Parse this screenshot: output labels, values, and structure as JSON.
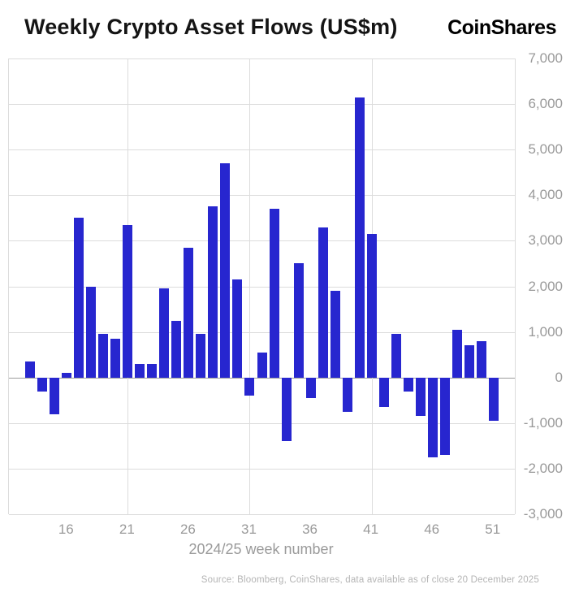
{
  "header": {
    "title": "Weekly Crypto Asset Flows (US$m)",
    "logo": "CoinShares"
  },
  "chart_data": {
    "type": "bar",
    "title": "Weekly Crypto Asset Flows (US$m)",
    "xlabel": "2024/25 week number",
    "ylabel": "",
    "weeks": [
      13,
      14,
      15,
      16,
      17,
      18,
      19,
      20,
      21,
      22,
      23,
      24,
      25,
      26,
      27,
      28,
      29,
      30,
      31,
      32,
      33,
      34,
      35,
      36,
      37,
      38,
      39,
      40,
      41,
      42,
      43,
      44,
      45,
      46,
      47,
      48,
      49,
      50,
      51
    ],
    "values": [
      350,
      -300,
      -800,
      100,
      3500,
      2000,
      950,
      850,
      3350,
      300,
      300,
      1950,
      1250,
      2850,
      950,
      3750,
      4700,
      2150,
      -400,
      550,
      3700,
      -1400,
      2500,
      -450,
      3300,
      1900,
      -750,
      6150,
      3150,
      -650,
      950,
      -300,
      -850,
      -1750,
      -1700,
      1050,
      700,
      800,
      -950
    ],
    "ylim": [
      -3000,
      7000
    ],
    "yticks": [
      7000,
      6000,
      5000,
      4000,
      3000,
      2000,
      1000,
      0,
      -1000,
      -2000,
      -3000
    ],
    "ytick_labels": [
      "7,000",
      "6,000",
      "5,000",
      "4,000",
      "3,000",
      "2,000",
      "1,000",
      "0",
      "-1,000",
      "-2,000",
      "-3,000"
    ],
    "xticks": [
      16,
      21,
      26,
      31,
      36,
      41,
      46,
      51
    ],
    "vgrid_weeks": [
      21,
      31,
      41
    ],
    "week_domain": [
      11.25,
      52.75
    ],
    "bar_color": "#2726cf",
    "grid": true,
    "legend": false
  },
  "footer": {
    "source": "Source: Bloomberg, CoinShares, data available as of close 20 December 2025"
  }
}
